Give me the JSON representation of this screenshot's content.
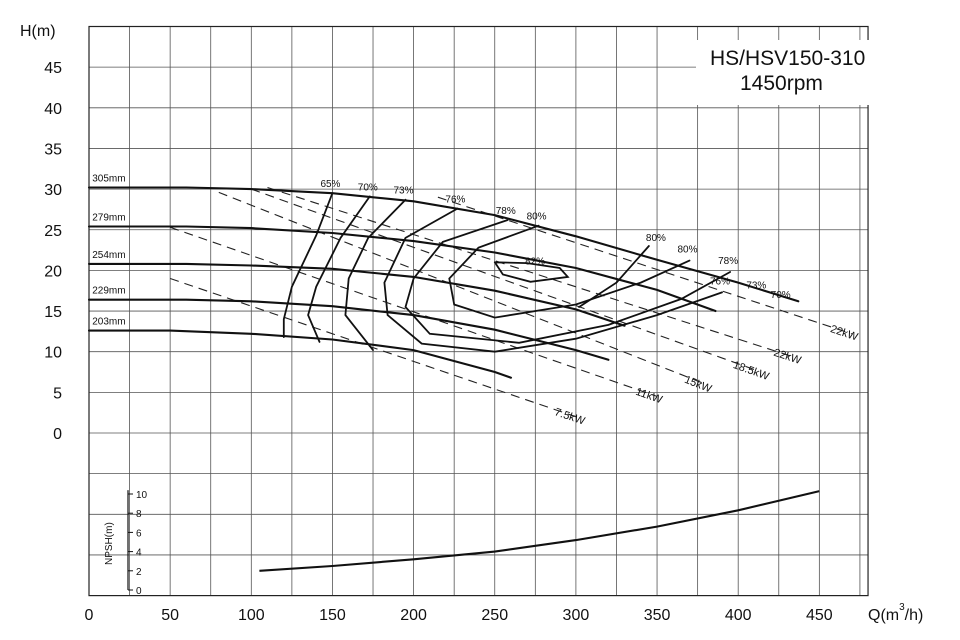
{
  "chart_data": {
    "type": "line",
    "title": "HS/HSV150-310",
    "subtitle": "1450rpm",
    "ylabel": "H(m)",
    "xlabel": "Q(m",
    "xlabel_sup": "3",
    "xlabel_end": "/h)",
    "xlim": [
      0,
      480
    ],
    "ylim": [
      -20,
      50
    ],
    "x_ticks": [
      "0",
      "50",
      "100",
      "150",
      "200",
      "250",
      "300",
      "350",
      "400",
      "450"
    ],
    "y_ticks": [
      "0",
      "5",
      "10",
      "15",
      "20",
      "25",
      "30",
      "35",
      "40",
      "45"
    ],
    "grid": true,
    "head_curves": [
      {
        "name": "305mm",
        "points": [
          [
            0,
            30.2
          ],
          [
            60,
            30.2
          ],
          [
            100,
            30.0
          ],
          [
            150,
            29.5
          ],
          [
            200,
            28.5
          ],
          [
            250,
            26.8
          ],
          [
            300,
            24.2
          ],
          [
            350,
            21.3
          ],
          [
            400,
            18.5
          ],
          [
            437,
            16.2
          ]
        ]
      },
      {
        "name": "279mm",
        "points": [
          [
            0,
            25.4
          ],
          [
            60,
            25.4
          ],
          [
            100,
            25.2
          ],
          [
            150,
            24.6
          ],
          [
            200,
            23.6
          ],
          [
            250,
            22.2
          ],
          [
            300,
            20.3
          ],
          [
            350,
            17.6
          ],
          [
            386,
            15.0
          ]
        ]
      },
      {
        "name": "254mm",
        "points": [
          [
            0,
            20.8
          ],
          [
            60,
            20.8
          ],
          [
            100,
            20.6
          ],
          [
            150,
            20.2
          ],
          [
            200,
            19.2
          ],
          [
            250,
            17.5
          ],
          [
            300,
            15.2
          ],
          [
            330,
            13.2
          ]
        ]
      },
      {
        "name": "229mm",
        "points": [
          [
            0,
            16.4
          ],
          [
            60,
            16.4
          ],
          [
            100,
            16.2
          ],
          [
            150,
            15.6
          ],
          [
            200,
            14.5
          ],
          [
            250,
            12.7
          ],
          [
            300,
            10.2
          ],
          [
            320,
            9.0
          ]
        ]
      },
      {
        "name": "203mm",
        "points": [
          [
            0,
            12.6
          ],
          [
            50,
            12.6
          ],
          [
            100,
            12.2
          ],
          [
            150,
            11.5
          ],
          [
            200,
            10.2
          ],
          [
            250,
            7.5
          ],
          [
            260,
            6.8
          ]
        ]
      }
    ],
    "efficiency_contours": [
      {
        "name": "65%",
        "points": [
          [
            150,
            29.5
          ],
          [
            140,
            24.3
          ],
          [
            125,
            18.0
          ],
          [
            120,
            14.0
          ],
          [
            120,
            11.8
          ]
        ]
      },
      {
        "name": "70%",
        "points": [
          [
            173,
            29.1
          ],
          [
            155,
            24.0
          ],
          [
            140,
            18.0
          ],
          [
            135,
            14.5
          ],
          [
            142,
            11.2
          ]
        ]
      },
      {
        "name": "73%",
        "points": [
          [
            195,
            28.7
          ],
          [
            172,
            24.0
          ],
          [
            160,
            19.0
          ],
          [
            158,
            14.5
          ],
          [
            175,
            10.2
          ]
        ]
      },
      {
        "name": "76%",
        "points": [
          [
            227,
            27.6
          ],
          [
            195,
            24.0
          ],
          [
            182,
            18.5
          ],
          [
            184,
            14.5
          ],
          [
            205,
            11.0
          ],
          [
            250,
            10.0
          ],
          [
            300,
            11.6
          ],
          [
            350,
            14.5
          ],
          [
            390,
            17.3
          ]
        ]
      },
      {
        "name": "78%",
        "points": [
          [
            258,
            26.2
          ],
          [
            218,
            23.5
          ],
          [
            200,
            19.0
          ],
          [
            195,
            15.5
          ],
          [
            210,
            12.2
          ],
          [
            265,
            11.1
          ],
          [
            320,
            13.3
          ],
          [
            365,
            16.5
          ],
          [
            395,
            19.8
          ]
        ]
      },
      {
        "name": "80%",
        "points": [
          [
            277,
            25.5
          ],
          [
            240,
            22.8
          ],
          [
            222,
            19.0
          ],
          [
            225,
            15.8
          ],
          [
            250,
            14.2
          ],
          [
            300,
            15.8
          ],
          [
            340,
            18.5
          ],
          [
            370,
            21.2
          ]
        ]
      },
      {
        "name": "80% ",
        "points": [
          [
            345,
            23.0
          ],
          [
            325,
            18.5
          ],
          [
            302,
            15.5
          ]
        ]
      },
      {
        "name": "82%",
        "points": [
          [
            250,
            21.0
          ],
          [
            255,
            19.5
          ],
          [
            272,
            18.6
          ],
          [
            295,
            19.2
          ],
          [
            290,
            20.3
          ],
          [
            270,
            20.9
          ],
          [
            250,
            21.0
          ]
        ]
      }
    ],
    "power_lines": [
      {
        "name": "7.5kW",
        "points": [
          [
            50,
            19.0
          ],
          [
            300,
            2.0
          ]
        ]
      },
      {
        "name": "11kW",
        "points": [
          [
            50,
            25.3
          ],
          [
            350,
            4.5
          ]
        ]
      },
      {
        "name": "15kW",
        "points": [
          [
            80,
            29.6
          ],
          [
            380,
            6.0
          ]
        ]
      },
      {
        "name": "18.5kW",
        "points": [
          [
            100,
            30.0
          ],
          [
            410,
            7.8
          ]
        ]
      },
      {
        "name": "22kW",
        "points": [
          [
            110,
            30.2
          ],
          [
            435,
            9.3
          ]
        ]
      },
      {
        "name": "22kW ",
        "points": [
          [
            215,
            29.0
          ],
          [
            470,
            12.2
          ]
        ]
      }
    ],
    "npsh": {
      "label": "NPSH(m)",
      "ticks": [
        "0",
        "2",
        "4",
        "6",
        "8",
        "10"
      ],
      "points": [
        [
          105,
          2.0
        ],
        [
          150,
          2.5
        ],
        [
          200,
          3.2
        ],
        [
          250,
          4.0
        ],
        [
          300,
          5.2
        ],
        [
          350,
          6.6
        ],
        [
          400,
          8.3
        ],
        [
          450,
          10.3
        ]
      ]
    }
  }
}
